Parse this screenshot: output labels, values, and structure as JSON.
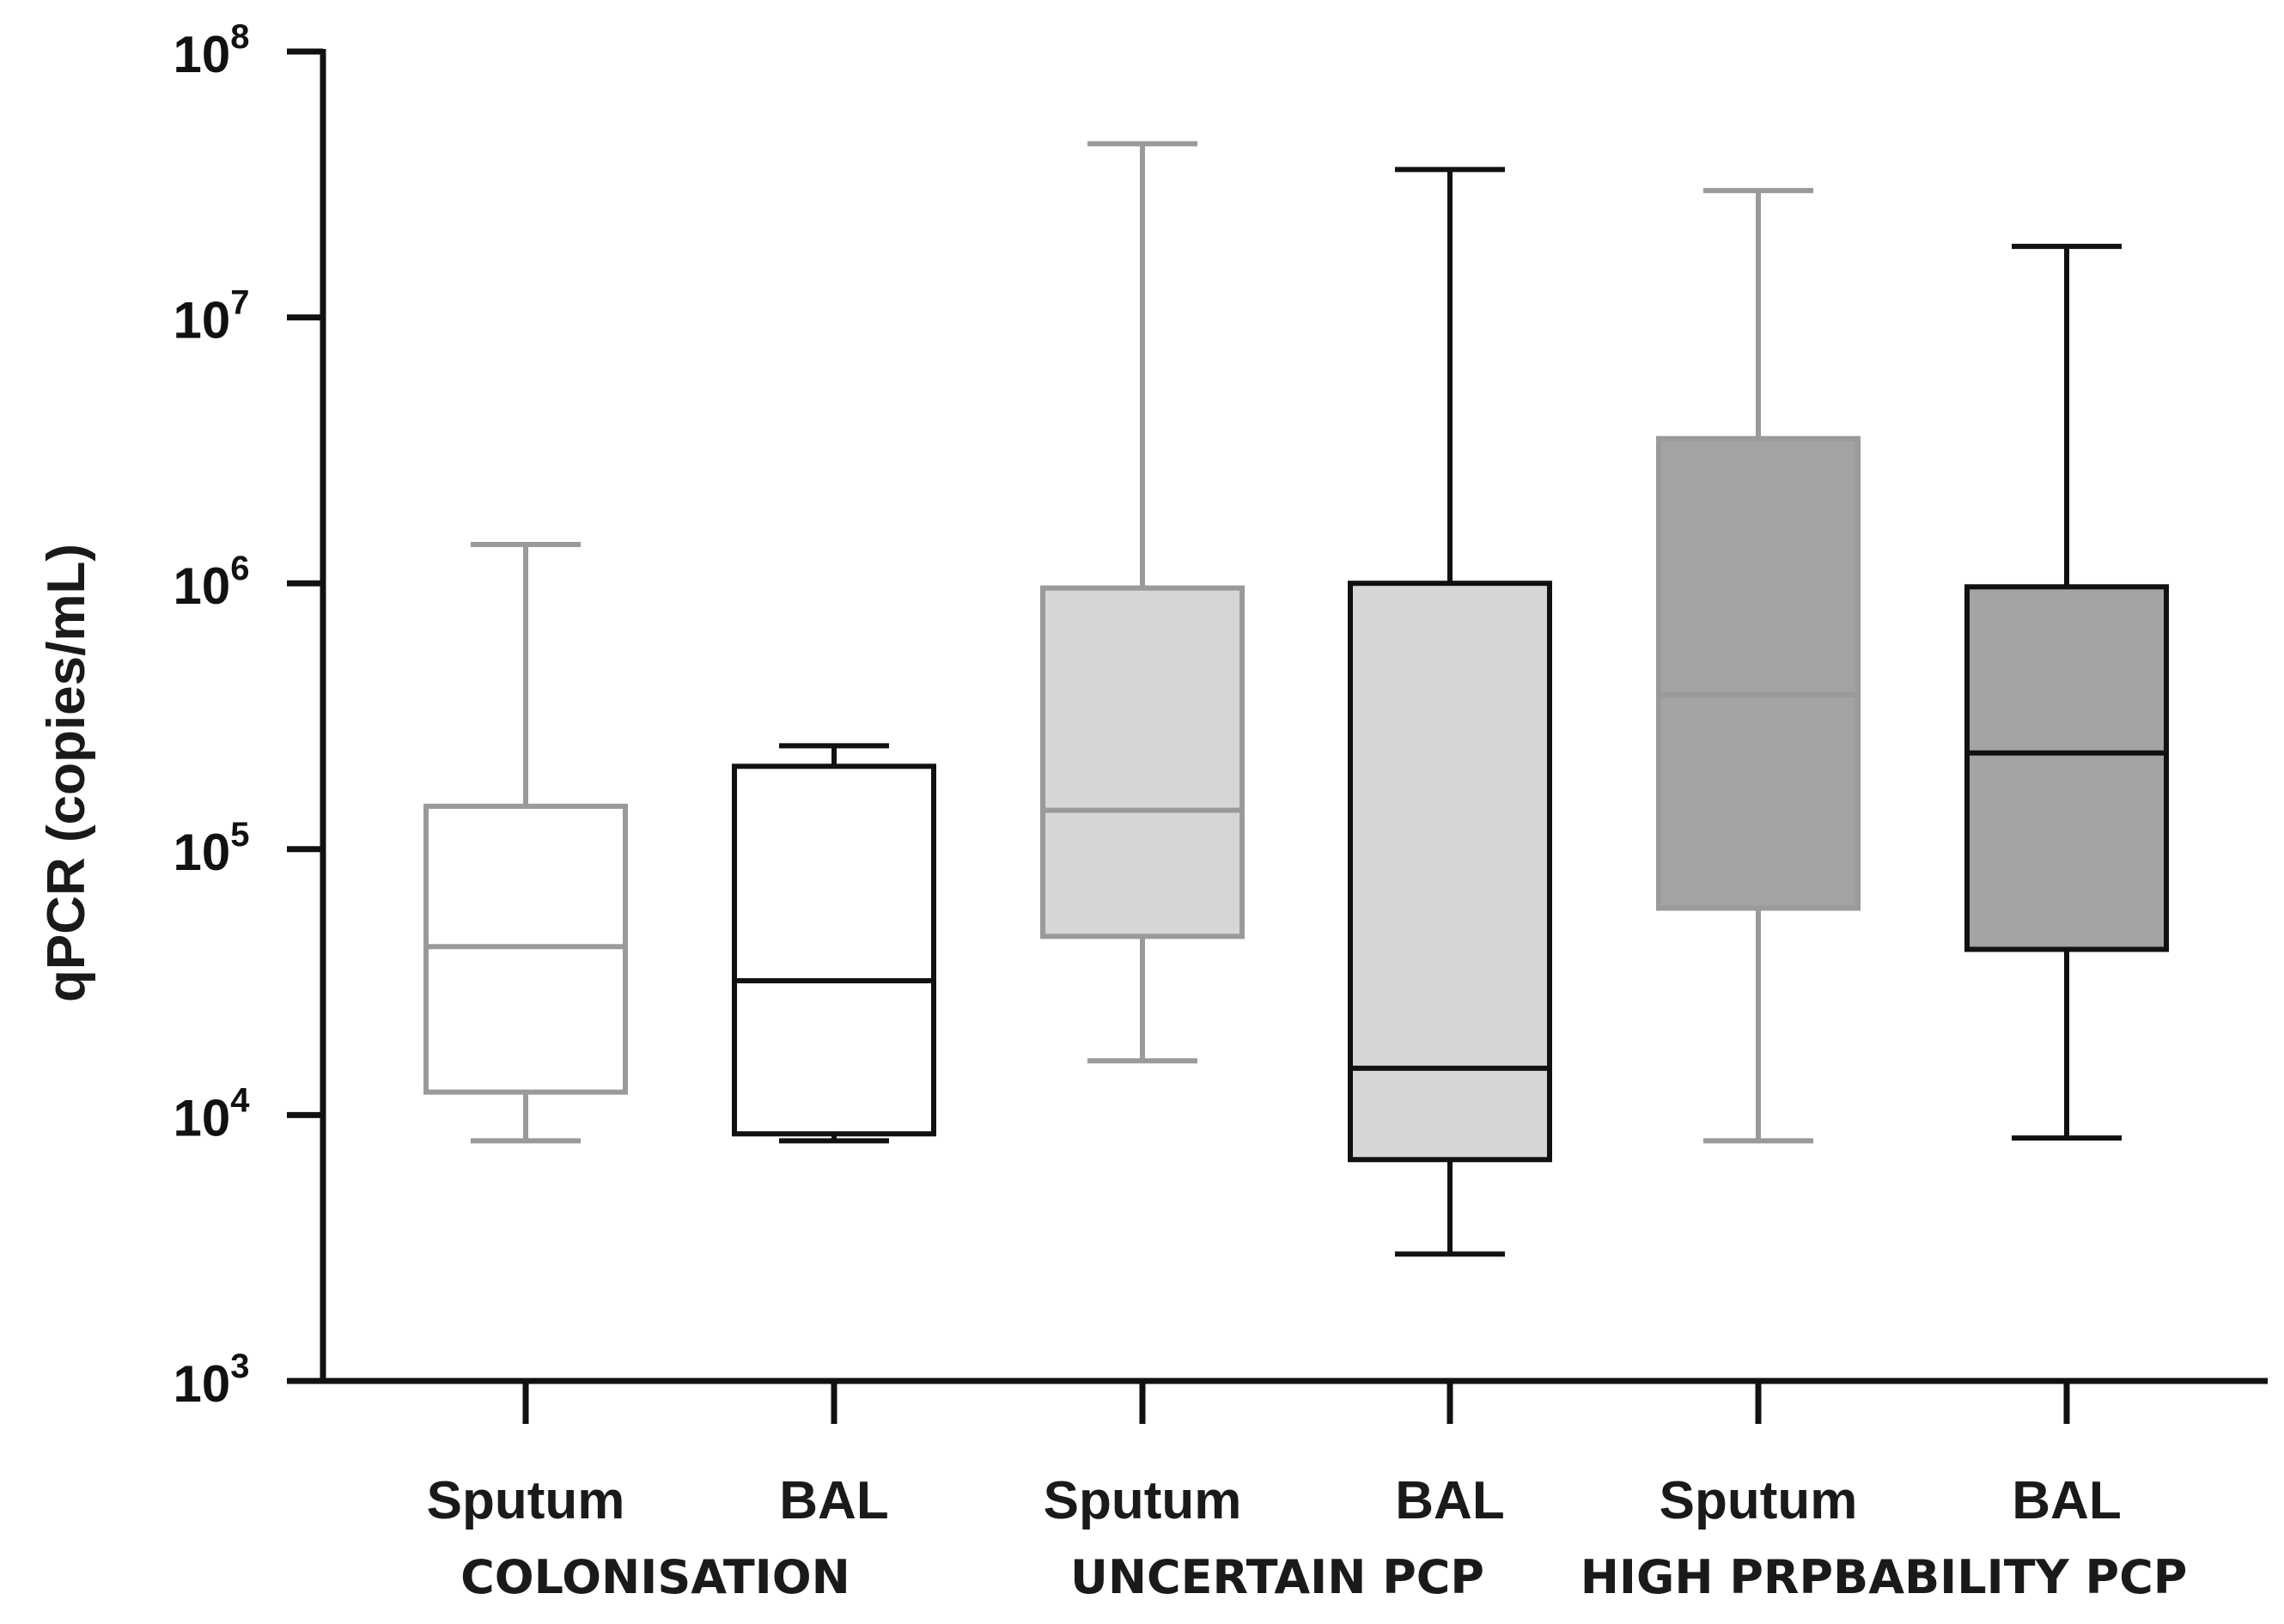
{
  "chart_data": {
    "type": "boxplot",
    "title": "",
    "xlabel": "",
    "ylabel": "qPCR (copies/mL)",
    "yscale": "log10",
    "ylim": [
      1000,
      100000000
    ],
    "ytick_base": "10",
    "ytick_exponents": [
      "3",
      "4",
      "5",
      "6",
      "7",
      "8"
    ],
    "categories": [
      "Sputum",
      "BAL",
      "Sputum",
      "BAL",
      "Sputum",
      "BAL"
    ],
    "groups": [
      {
        "label": "COLONISATION",
        "members": [
          0,
          1
        ]
      },
      {
        "label": "UNCERTAIN PCP",
        "members": [
          2,
          3
        ]
      },
      {
        "label": "HIGH PRPBABILITY PCP",
        "members": [
          4,
          5
        ]
      }
    ],
    "boxes": [
      {
        "name": "Sputum",
        "group": "COLONISATION",
        "min": 8000,
        "q1": 12200,
        "median": 43000,
        "q3": 145000,
        "max": 1400000,
        "fill": "#ffffff",
        "stroke": "#9a9a9a"
      },
      {
        "name": "BAL",
        "group": "COLONISATION",
        "min": 8000,
        "q1": 8500,
        "median": 32000,
        "q3": 205000,
        "max": 245000,
        "fill": "#ffffff",
        "stroke": "#111111"
      },
      {
        "name": "Sputum",
        "group": "UNCERTAIN PCP",
        "min": 16000,
        "q1": 47000,
        "median": 140000,
        "q3": 960000,
        "max": 45000000,
        "fill": "#d6d6d6",
        "stroke": "#9a9a9a"
      },
      {
        "name": "BAL",
        "group": "UNCERTAIN PCP",
        "min": 3000,
        "q1": 6800,
        "median": 15000,
        "q3": 1000000,
        "max": 36000000,
        "fill": "#d6d6d6",
        "stroke": "#111111"
      },
      {
        "name": "Sputum",
        "group": "HIGH PRPBABILITY PCP",
        "min": 8000,
        "q1": 60000,
        "median": 380000,
        "q3": 3500000,
        "max": 30000000,
        "fill": "#a3a3a3",
        "stroke": "#9a9a9a"
      },
      {
        "name": "BAL",
        "group": "HIGH PRPBABILITY PCP",
        "min": 8200,
        "q1": 42000,
        "median": 230000,
        "q3": 970000,
        "max": 18500000,
        "fill": "#a3a3a3",
        "stroke": "#111111"
      }
    ]
  }
}
